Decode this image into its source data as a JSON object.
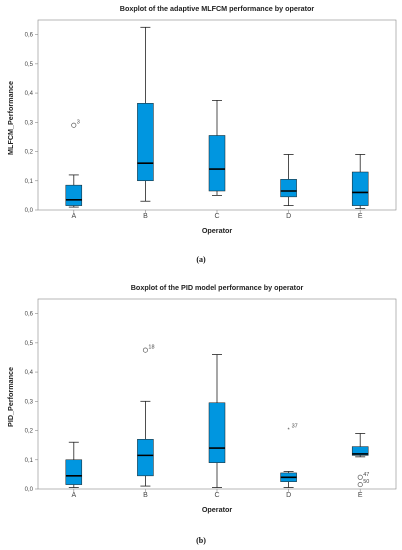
{
  "chart_data": [
    {
      "type": "boxplot",
      "title": "Boxplot of the adaptive MLFCM performance by operator",
      "xlabel": "Operator",
      "ylabel": "MLFCM_Performance",
      "ylim": [
        0,
        0.65
      ],
      "yticks": [
        "0,0",
        "0,1",
        "0,2",
        "0,3",
        "0,4",
        "0,5",
        "0,6"
      ],
      "categories": [
        "A",
        "B",
        "C",
        "D",
        "E"
      ],
      "boxes": [
        {
          "category": "A",
          "min": 0.01,
          "q1": 0.015,
          "median": 0.035,
          "q3": 0.085,
          "max": 0.12
        },
        {
          "category": "B",
          "min": 0.03,
          "q1": 0.1,
          "median": 0.16,
          "q3": 0.365,
          "max": 0.625
        },
        {
          "category": "C",
          "min": 0.05,
          "q1": 0.065,
          "median": 0.14,
          "q3": 0.255,
          "max": 0.375
        },
        {
          "category": "D",
          "min": 0.015,
          "q1": 0.045,
          "median": 0.065,
          "q3": 0.105,
          "max": 0.19
        },
        {
          "category": "E",
          "min": 0.005,
          "q1": 0.015,
          "median": 0.06,
          "q3": 0.13,
          "max": 0.19
        }
      ],
      "outliers": [
        {
          "category": "A",
          "value": 0.29,
          "label": "3",
          "marker": "circle"
        }
      ],
      "caption": "(a)",
      "grid": false,
      "color": "#0096e0"
    },
    {
      "type": "boxplot",
      "title": "Boxplot of the PID model performance by operator",
      "xlabel": "Operator",
      "ylabel": "PID_Performance",
      "ylim": [
        0,
        0.65
      ],
      "yticks": [
        "0,0",
        "0,1",
        "0,2",
        "0,3",
        "0,4",
        "0,5",
        "0,6"
      ],
      "categories": [
        "A",
        "B",
        "C",
        "D",
        "E"
      ],
      "boxes": [
        {
          "category": "A",
          "min": 0.005,
          "q1": 0.015,
          "median": 0.045,
          "q3": 0.1,
          "max": 0.16
        },
        {
          "category": "B",
          "min": 0.01,
          "q1": 0.045,
          "median": 0.115,
          "q3": 0.17,
          "max": 0.3
        },
        {
          "category": "C",
          "min": 0.005,
          "q1": 0.09,
          "median": 0.14,
          "q3": 0.295,
          "max": 0.46
        },
        {
          "category": "D",
          "min": 0.005,
          "q1": 0.025,
          "median": 0.04,
          "q3": 0.055,
          "max": 0.06
        },
        {
          "category": "E",
          "min": 0.11,
          "q1": 0.115,
          "median": 0.12,
          "q3": 0.145,
          "max": 0.19
        }
      ],
      "outliers": [
        {
          "category": "B",
          "value": 0.475,
          "label": "18",
          "marker": "circle"
        },
        {
          "category": "D",
          "value": 0.205,
          "label": "37",
          "marker": "star"
        },
        {
          "category": "E",
          "value": 0.04,
          "label": "47",
          "marker": "circle"
        },
        {
          "category": "E",
          "value": 0.015,
          "label": "50",
          "marker": "circle"
        }
      ],
      "caption": "(b)",
      "grid": false,
      "color": "#0096e0"
    }
  ]
}
